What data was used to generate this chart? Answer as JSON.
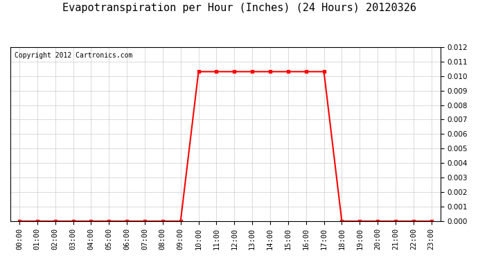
{
  "title": "Evapotranspiration per Hour (Inches) (24 Hours) 20120326",
  "copyright_text": "Copyright 2012 Cartronics.com",
  "line_color": "#ff0000",
  "background_color": "#ffffff",
  "plot_bg_color": "#ffffff",
  "grid_color": "#cccccc",
  "ylim": [
    0,
    0.012
  ],
  "yticks": [
    0.0,
    0.001,
    0.002,
    0.003,
    0.004,
    0.005,
    0.006,
    0.007,
    0.008,
    0.009,
    0.01,
    0.011,
    0.012
  ],
  "x_vals": [
    0,
    1,
    2,
    3,
    4,
    5,
    6,
    7,
    8,
    9,
    10,
    11,
    12,
    13,
    14,
    15,
    16,
    17,
    18,
    19,
    20,
    21,
    22,
    23
  ],
  "y_vals": [
    0.0,
    0.0,
    0.0,
    0.0,
    0.0,
    0.0,
    0.0,
    0.0,
    0.0,
    0.0,
    0.0103,
    0.0103,
    0.0103,
    0.0103,
    0.0103,
    0.0103,
    0.0103,
    0.0103,
    0.0,
    0.0,
    0.0,
    0.0,
    0.0,
    0.0
  ],
  "marker": "s",
  "marker_size": 3,
  "line_width": 1.5,
  "title_fontsize": 11,
  "tick_fontsize": 7.5,
  "copyright_fontsize": 7
}
